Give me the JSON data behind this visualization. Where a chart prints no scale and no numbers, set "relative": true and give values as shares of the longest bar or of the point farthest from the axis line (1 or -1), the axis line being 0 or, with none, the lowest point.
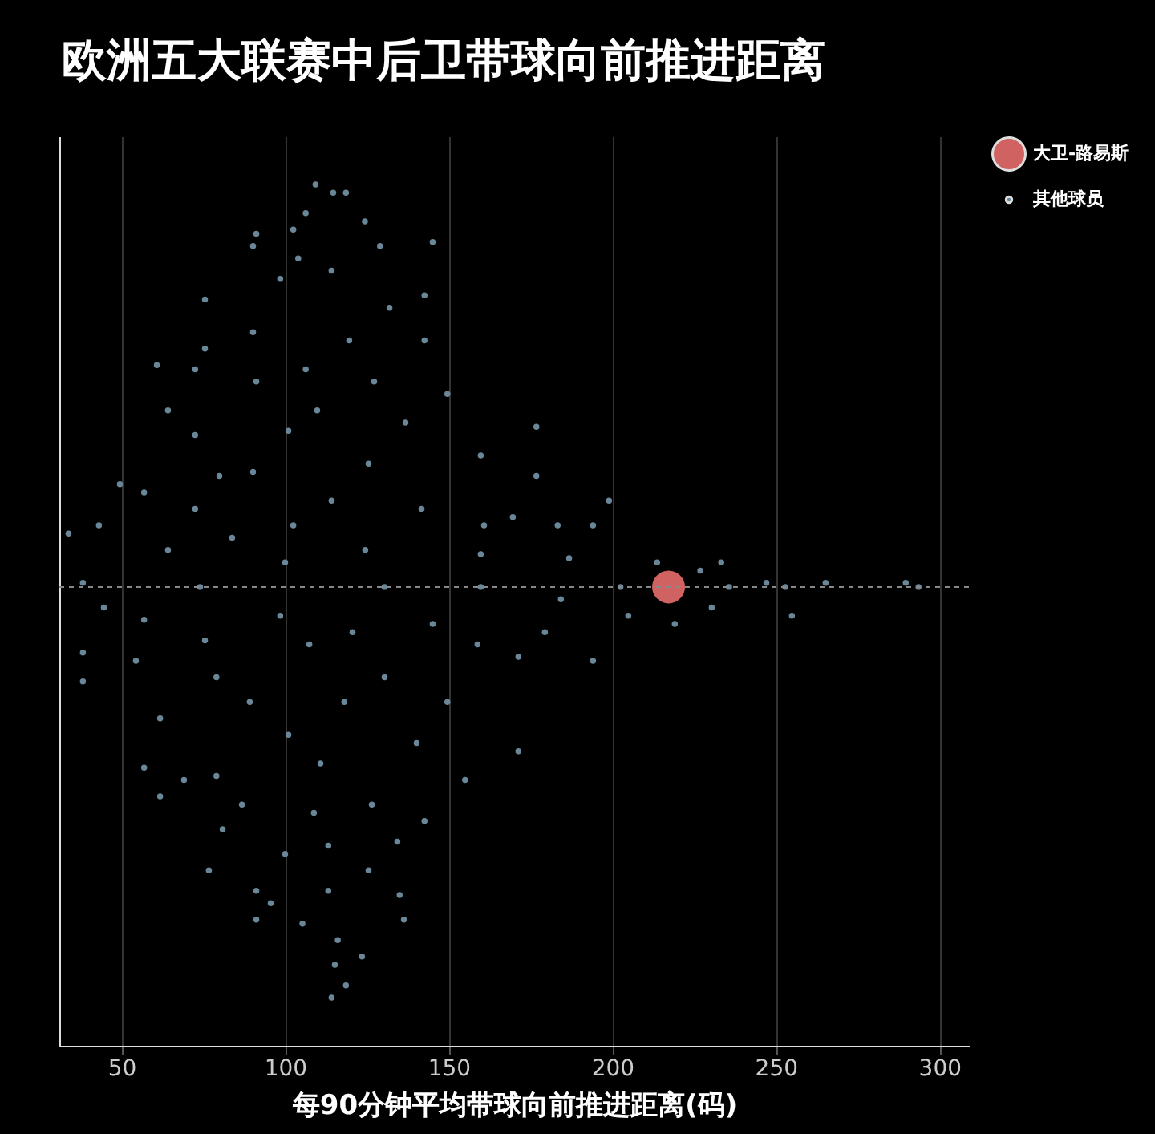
{
  "chart_data": {
    "type": "scatter",
    "title": "欧洲五大联赛中后卫带球向前推进距离",
    "xlabel": "每90分钟平均带球向前推进距离(码)",
    "relative": true,
    "xlim": [
      31,
      309
    ],
    "xticks": [
      50,
      100,
      150,
      200,
      250,
      300
    ],
    "grid": "x",
    "legend": "top right",
    "marker": "circle",
    "ref_lines": [
      {
        "axis": "y",
        "value": 0,
        "color": "#888888",
        "line_style": "dashed"
      }
    ],
    "series": [
      {
        "name": "大卫-路易斯",
        "color": "#d06262",
        "x": [
          217.2
        ],
        "values": [
          0
        ]
      },
      {
        "name": "其他球员",
        "color": "#6a8799",
        "x": [
          109.3,
          114.7,
          118.6,
          106.3,
          102.5,
          91.2,
          124.4,
          90.2,
          104,
          129,
          145.1,
          98.5,
          114.2,
          75.5,
          142.6,
          131.9,
          90.2,
          75.5,
          119.6,
          60.8,
          142.6,
          106.3,
          72.5,
          149.6,
          127.2,
          91.2,
          64.2,
          109.8,
          136.8,
          176.8,
          72.5,
          101,
          159.8,
          79.9,
          49.5,
          90.2,
          125.5,
          114.2,
          176.8,
          199,
          56.9,
          72.5,
          141.7,
          33.8,
          43.1,
          194.1,
          169.6,
          160.8,
          102.5,
          83.8,
          64.2,
          124.5,
          186.8,
          38.2,
          159.8,
          100,
          233.3,
          226.9,
          247.1,
          265.2,
          289.7,
          293.6,
          252.9,
          235.7,
          202.5,
          74,
          130.4,
          159.8,
          213.7,
          204.9,
          219.1,
          230.4,
          254.9,
          184.3,
          44.6,
          56.9,
          98.5,
          120.6,
          145.1,
          179.4,
          38.2,
          75.5,
          107.4,
          158.8,
          194.1,
          171.3,
          38.2,
          54.4,
          79,
          130.4,
          149.6,
          89.2,
          61.8,
          118.1,
          171.3,
          101,
          140.2,
          56.9,
          69.1,
          79,
          110.8,
          155,
          61.8,
          126.5,
          86.8,
          108.8,
          142.6,
          80.9,
          113.2,
          100,
          134.3,
          76.7,
          125.5,
          91.2,
          113.2,
          135,
          95.6,
          105.3,
          91.2,
          136.3,
          116.1,
          123.5,
          115.2,
          118.6,
          114.2,
          183.3
        ],
        "values": [
          0.98,
          0.96,
          0.96,
          0.91,
          0.87,
          0.86,
          0.89,
          0.83,
          0.8,
          0.83,
          0.84,
          0.75,
          0.77,
          0.7,
          0.71,
          0.68,
          0.62,
          0.58,
          0.6,
          0.54,
          0.6,
          0.53,
          0.53,
          0.47,
          0.5,
          0.5,
          0.43,
          0.43,
          0.4,
          0.39,
          0.37,
          0.38,
          0.32,
          0.27,
          0.25,
          0.28,
          0.3,
          0.21,
          0.27,
          0.21,
          0.23,
          0.19,
          0.19,
          0.13,
          0.15,
          0.15,
          0.17,
          0.15,
          0.15,
          0.12,
          0.09,
          0.09,
          0.07,
          0.01,
          0.08,
          0.06,
          0.06,
          0.04,
          0.01,
          0.01,
          0.01,
          0,
          0,
          0,
          0,
          0,
          0,
          0,
          0.06,
          -0.07,
          -0.09,
          -0.05,
          -0.07,
          -0.03,
          -0.05,
          -0.08,
          -0.07,
          -0.11,
          -0.09,
          -0.11,
          -0.16,
          -0.13,
          -0.14,
          -0.14,
          -0.18,
          -0.17,
          -0.23,
          -0.18,
          -0.22,
          -0.22,
          -0.28,
          -0.28,
          -0.32,
          -0.28,
          -0.4,
          -0.36,
          -0.38,
          -0.44,
          -0.47,
          -0.46,
          -0.43,
          -0.47,
          -0.51,
          -0.53,
          -0.53,
          -0.55,
          -0.57,
          -0.59,
          -0.63,
          -0.65,
          -0.62,
          -0.69,
          -0.69,
          -0.74,
          -0.74,
          -0.75,
          -0.77,
          -0.82,
          -0.81,
          -0.81,
          -0.86,
          -0.9,
          -0.92,
          -0.97,
          -1,
          0.15
        ]
      }
    ]
  }
}
